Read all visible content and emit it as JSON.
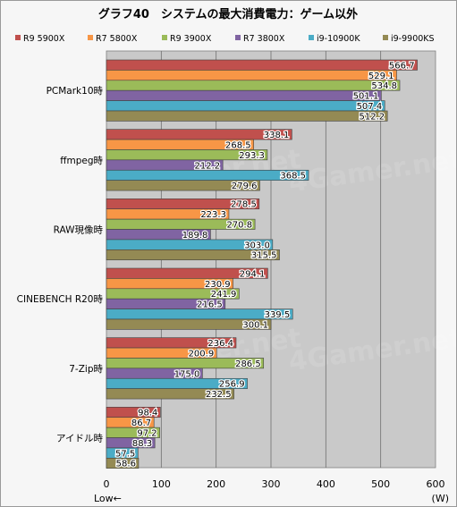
{
  "chart_data": {
    "type": "bar",
    "orientation": "horizontal",
    "title": "グラフ40　システムの最大消費電力：ゲーム以外",
    "categories": [
      "PCMark10時",
      "ffmpeg時",
      "RAW現像時",
      "CINEBENCH R20時",
      "7-Zip時",
      "アイドル時"
    ],
    "series": [
      {
        "name": "R9 5900X",
        "color": "#c0504d",
        "values": [
          566.7,
          338.1,
          278.5,
          294.1,
          236.4,
          98.4
        ]
      },
      {
        "name": "R7 5800X",
        "color": "#f79646",
        "values": [
          529.1,
          268.5,
          223.3,
          230.9,
          200.9,
          86.7
        ]
      },
      {
        "name": "R9 3900X",
        "color": "#9bbb59",
        "values": [
          534.8,
          293.3,
          270.8,
          241.9,
          286.5,
          97.2
        ]
      },
      {
        "name": "R7 3800X",
        "color": "#8064a2",
        "values": [
          501.1,
          212.2,
          189.8,
          216.5,
          175.0,
          88.3
        ]
      },
      {
        "name": "i9-10900K",
        "color": "#4bacc6",
        "values": [
          507.4,
          368.5,
          303.0,
          339.5,
          256.9,
          57.5
        ]
      },
      {
        "name": "i9-9900KS",
        "color": "#948a54",
        "values": [
          512.2,
          279.6,
          315.5,
          300.1,
          232.5,
          58.6
        ]
      }
    ],
    "xlim": [
      0,
      600
    ],
    "xticks": [
      0,
      100,
      200,
      300,
      400,
      500,
      600
    ],
    "xlabel_left": "Low←",
    "unit": "(W)",
    "legend_position": "top",
    "watermark": "4Gamer.net"
  }
}
